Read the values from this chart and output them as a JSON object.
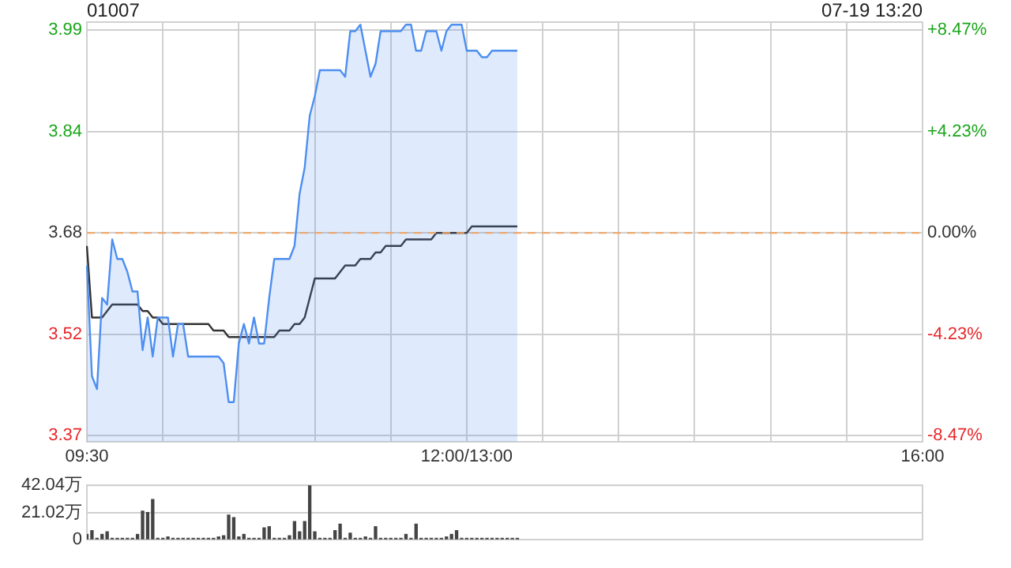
{
  "chart_data": [
    {
      "type": "line",
      "title": "01007",
      "annotations": [
        "07-19 13:20"
      ],
      "categories": [
        "09:30",
        null,
        null,
        null,
        null,
        null,
        null,
        null,
        null,
        null,
        null,
        null,
        null,
        null,
        null,
        null,
        null,
        null,
        null,
        null,
        null,
        null,
        null,
        null,
        null,
        null,
        null,
        null,
        null,
        null,
        null,
        null,
        null,
        null,
        null,
        null,
        null,
        null,
        null,
        null,
        null,
        null,
        null,
        null,
        null,
        null,
        null,
        null,
        null,
        null,
        null,
        null,
        null,
        null,
        null,
        null,
        null,
        null,
        null,
        null,
        null,
        null,
        null,
        null,
        null,
        null,
        null,
        null,
        null,
        null,
        null,
        null,
        null,
        null,
        null,
        "12:00/13:00",
        null,
        null,
        null,
        null,
        null,
        null,
        null,
        null,
        null,
        null,
        null,
        null,
        null,
        null,
        null,
        null,
        null,
        null,
        null,
        null,
        null,
        null,
        null,
        null,
        null,
        null,
        null,
        null,
        null,
        null,
        null,
        null,
        null,
        null,
        null,
        null,
        null,
        null,
        null,
        null,
        null,
        null,
        null,
        null,
        null,
        null,
        null,
        null,
        null,
        null,
        null,
        null,
        null,
        null,
        null,
        null,
        null,
        null,
        null,
        null,
        null,
        null,
        null,
        null,
        null,
        null,
        null,
        null,
        null,
        null,
        null,
        null,
        null,
        null,
        null,
        null,
        null,
        null,
        null,
        null,
        null,
        null,
        null,
        null,
        null,
        null,
        null,
        null,
        null,
        "16:00"
      ],
      "ylim": [
        3.359,
        4.004
      ],
      "yticks": [
        {
          "value": 3.3683,
          "label": "3.37"
        },
        {
          "value": 3.5243,
          "label": "3.52"
        },
        3.68,
        {
          "value": 3.8357,
          "label": "3.84"
        },
        {
          "value": 3.9917,
          "label": "3.99"
        }
      ],
      "y2lim": [
        -8.72,
        8.8
      ],
      "y2ticks": [
        {
          "value": -8.47,
          "label": "-8.47%"
        },
        {
          "value": -4.23,
          "label": "-4.23%"
        },
        {
          "value": 0,
          "label": "0.00%"
        },
        {
          "value": 4.23,
          "label": "+4.23%"
        },
        {
          "value": 8.47,
          "label": "+8.47%"
        }
      ],
      "grid": true,
      "marker": "none",
      "line_style": "solid",
      "ref_lines": [
        {
          "axis": "y",
          "value": 3.68,
          "color": "#f4a460",
          "line_style": "dashed"
        }
      ],
      "series": [
        {
          "type": "area",
          "color": "#4d8ef0",
          "values": [
            3.63,
            3.46,
            3.44,
            3.58,
            3.57,
            3.67,
            3.64,
            3.64,
            3.62,
            3.59,
            3.59,
            3.5,
            3.55,
            3.49,
            3.55,
            3.55,
            3.55,
            3.49,
            3.54,
            3.54,
            3.49,
            3.49,
            3.49,
            3.49,
            3.49,
            3.49,
            3.49,
            3.48,
            3.42,
            3.42,
            3.51,
            3.54,
            3.51,
            3.55,
            3.51,
            3.51,
            3.58,
            3.64,
            3.64,
            3.64,
            3.64,
            3.66,
            3.74,
            3.78,
            3.86,
            3.89,
            3.93,
            3.93,
            3.93,
            3.93,
            3.93,
            3.92,
            3.99,
            3.99,
            4.0,
            3.96,
            3.92,
            3.94,
            3.99,
            3.99,
            3.99,
            3.99,
            3.99,
            4.0,
            4.0,
            3.96,
            3.96,
            3.99,
            3.99,
            3.99,
            3.96,
            3.99,
            4.0,
            4.0,
            4.0,
            3.96,
            3.96,
            3.96,
            3.95,
            3.95,
            3.96,
            3.96,
            3.96,
            3.96,
            3.96,
            3.96,
            null,
            null,
            null,
            null,
            null,
            null,
            null,
            null,
            null,
            null,
            null,
            null,
            null,
            null,
            null,
            null,
            null,
            null,
            null,
            null,
            null,
            null,
            null,
            null,
            null,
            null,
            null,
            null,
            null,
            null,
            null,
            null,
            null,
            null,
            null,
            null,
            null,
            null,
            null,
            null,
            null,
            null,
            null,
            null,
            null,
            null,
            null,
            null,
            null,
            null,
            null,
            null,
            null,
            null,
            null,
            null,
            null,
            null,
            null,
            null,
            null,
            null,
            null,
            null,
            null,
            null,
            null,
            null,
            null,
            null,
            null,
            null,
            null,
            null,
            null,
            null,
            null,
            null,
            null,
            null
          ]
        },
        {
          "type": "line",
          "color": "#333333",
          "values": [
            3.66,
            3.55,
            3.55,
            3.55,
            3.56,
            3.57,
            3.57,
            3.57,
            3.57,
            3.57,
            3.57,
            3.56,
            3.56,
            3.55,
            3.55,
            3.54,
            3.54,
            3.54,
            3.54,
            3.54,
            3.54,
            3.54,
            3.54,
            3.54,
            3.54,
            3.53,
            3.53,
            3.53,
            3.52,
            3.52,
            3.52,
            3.52,
            3.52,
            3.52,
            3.52,
            3.52,
            3.52,
            3.52,
            3.53,
            3.53,
            3.53,
            3.54,
            3.54,
            3.55,
            3.58,
            3.61,
            3.61,
            3.61,
            3.61,
            3.61,
            3.62,
            3.63,
            3.63,
            3.63,
            3.64,
            3.64,
            3.64,
            3.65,
            3.65,
            3.66,
            3.66,
            3.66,
            3.66,
            3.67,
            3.67,
            3.67,
            3.67,
            3.67,
            3.67,
            3.68,
            3.68,
            3.68,
            3.68,
            3.68,
            3.68,
            3.68,
            3.69,
            3.69,
            3.69,
            3.69,
            3.69,
            3.69,
            3.69,
            3.69,
            3.69,
            3.69,
            null,
            null,
            null,
            null,
            null,
            null,
            null,
            null,
            null,
            null,
            null,
            null,
            null,
            null,
            null,
            null,
            null,
            null,
            null,
            null,
            null,
            null,
            null,
            null,
            null,
            null,
            null,
            null,
            null,
            null,
            null,
            null,
            null,
            null,
            null,
            null,
            null,
            null,
            null,
            null,
            null,
            null,
            null,
            null,
            null,
            null,
            null,
            null,
            null,
            null,
            null,
            null,
            null,
            null,
            null,
            null,
            null,
            null,
            null,
            null,
            null,
            null,
            null,
            null,
            null,
            null,
            null,
            null,
            null,
            null,
            null,
            null,
            null,
            null,
            null,
            null,
            null,
            null,
            null,
            null
          ]
        }
      ]
    },
    {
      "type": "bar",
      "grid": "y",
      "categories": [
        null,
        null,
        null,
        null,
        null,
        null,
        null,
        null,
        null,
        null,
        null,
        null,
        null,
        null,
        null,
        null,
        null,
        null,
        null,
        null,
        null,
        null,
        null,
        null,
        null,
        null,
        null,
        null,
        null,
        null,
        null,
        null,
        null,
        null,
        null,
        null,
        null,
        null,
        null,
        null,
        null,
        null,
        null,
        null,
        null,
        null,
        null,
        null,
        null,
        null,
        null,
        null,
        null,
        null,
        null,
        null,
        null,
        null,
        null,
        null,
        null,
        null,
        null,
        null,
        null,
        null,
        null,
        null,
        null,
        null,
        null,
        null,
        null,
        null,
        null,
        null,
        null,
        null,
        null,
        null,
        null,
        null,
        null,
        null,
        null,
        null,
        null,
        null,
        null,
        null,
        null,
        null,
        null,
        null,
        null,
        null,
        null,
        null,
        null,
        null,
        null,
        null,
        null,
        null,
        null,
        null,
        null,
        null,
        null,
        null,
        null,
        null,
        null,
        null,
        null,
        null,
        null,
        null,
        null,
        null,
        null,
        null,
        null,
        null,
        null,
        null,
        null,
        null,
        null,
        null,
        null,
        null,
        null,
        null,
        null,
        null,
        null,
        null,
        null,
        null,
        null,
        null,
        null,
        null,
        null,
        null,
        null,
        null,
        null,
        null,
        null,
        null,
        null,
        null,
        null,
        null,
        null,
        null,
        null,
        null,
        null,
        null,
        null,
        null,
        null,
        null
      ],
      "ylim": [
        0,
        42.04
      ],
      "yticks": [
        0,
        {
          "value": 21.02,
          "label": "21.02万"
        },
        {
          "value": 42.04,
          "label": "42.04万"
        }
      ],
      "series": [
        {
          "color": "#444444",
          "values": [
            4,
            7,
            1,
            4,
            6,
            1,
            1,
            1,
            1,
            1,
            4,
            22,
            21,
            31,
            1,
            1,
            2,
            1,
            1,
            1,
            1,
            1,
            1,
            1,
            1,
            1,
            2,
            3,
            19,
            17,
            2,
            4,
            1,
            1,
            1,
            9,
            10,
            1,
            1,
            1,
            3,
            14,
            6,
            14,
            42,
            6,
            1,
            1,
            1,
            7,
            12,
            1,
            5,
            1,
            1,
            2,
            1,
            10,
            1,
            1,
            1,
            1,
            1,
            4,
            1,
            12,
            1,
            1,
            1,
            1,
            1,
            2,
            4,
            7,
            1,
            1,
            1,
            1,
            1,
            1,
            1,
            1,
            1,
            1,
            1,
            1,
            null,
            null,
            null,
            null,
            null,
            null,
            null,
            null,
            null,
            null,
            null,
            null,
            null,
            null,
            null,
            null,
            null,
            null,
            null,
            null,
            null,
            null,
            null,
            null,
            null,
            null,
            null,
            null,
            null,
            null,
            null,
            null,
            null,
            null,
            null,
            null,
            null,
            null,
            null,
            null,
            null,
            null,
            null,
            null,
            null,
            null,
            null,
            null,
            null,
            null,
            null,
            null,
            null,
            null,
            null,
            null,
            null,
            null,
            null,
            null,
            null,
            null,
            null,
            null,
            null,
            null,
            null,
            null,
            null,
            null,
            null,
            null,
            null,
            null,
            null,
            null,
            null,
            null,
            null,
            null
          ]
        }
      ]
    }
  ]
}
